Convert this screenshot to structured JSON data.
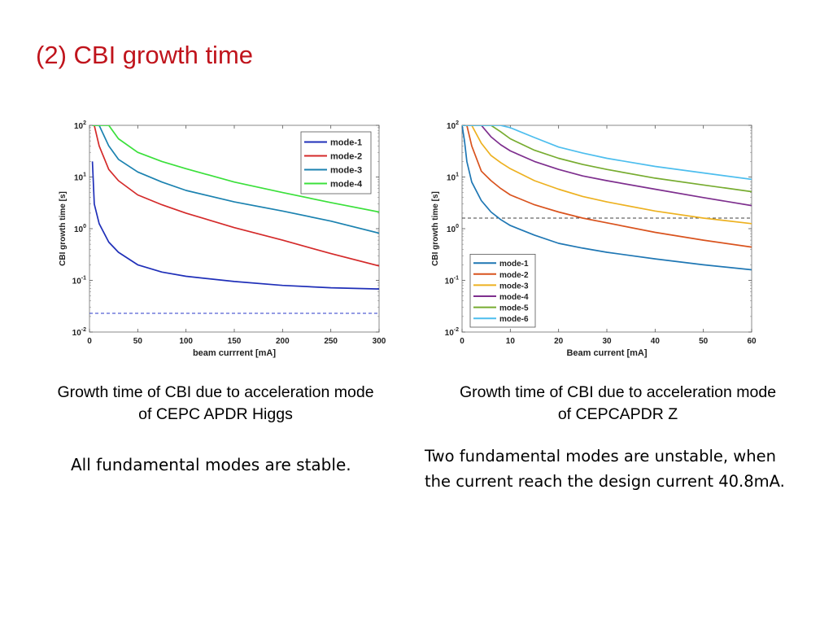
{
  "slide": {
    "title": "(2) CBI growth time",
    "caption_left_line1": "Growth time of CBI due to acceleration mode",
    "caption_left_line2": "of CEPC APDR Higgs",
    "caption_right_line1": "Growth time of CBI due to acceleration mode",
    "caption_right_line2": "of CEPCAPDR Z",
    "note_left": "All fundamental modes are stable.",
    "note_right_line1": "Two fundamental modes are unstable, when",
    "note_right_line2": "the current reach the design current 40.8mA."
  },
  "chart_data": [
    {
      "type": "line",
      "xlabel": "beam currrent [mA]",
      "ylabel": "CBI growth time [s]",
      "xlim": [
        0,
        300
      ],
      "ylim": [
        0.01,
        100
      ],
      "y_scale": "log",
      "x_ticks": [
        0,
        50,
        100,
        150,
        200,
        250,
        300
      ],
      "y_tick_labels": [
        "10^-2",
        "10^-1",
        "10^0",
        "10^1",
        "10^2"
      ],
      "grid": false,
      "legend_position": "top-right",
      "x": [
        3,
        5,
        10,
        20,
        30,
        50,
        75,
        100,
        150,
        200,
        250,
        300
      ],
      "series": [
        {
          "name": "mode-1",
          "color": "#1f2fb8",
          "values": [
            20,
            3.0,
            1.25,
            0.55,
            0.35,
            0.2,
            0.145,
            0.12,
            0.095,
            0.08,
            0.072,
            0.068
          ]
        },
        {
          "name": "mode-2",
          "color": "#d42a2a",
          "values": [
            100,
            100,
            40,
            14,
            8.5,
            4.5,
            2.9,
            2.0,
            1.05,
            0.6,
            0.33,
            0.19
          ]
        },
        {
          "name": "mode-3",
          "color": "#1b82b0",
          "values": [
            100,
            100,
            100,
            40,
            22,
            12.5,
            8.0,
            5.5,
            3.3,
            2.2,
            1.4,
            0.82
          ]
        },
        {
          "name": "mode-4",
          "color": "#3be03b",
          "values": [
            100,
            100,
            100,
            100,
            55,
            30,
            20,
            14.5,
            8.0,
            5.0,
            3.2,
            2.1
          ]
        }
      ],
      "reference_line": {
        "y": 0.023,
        "color": "#2a3ac8",
        "style": "dashed"
      }
    },
    {
      "type": "line",
      "xlabel": "Beam current [mA]",
      "ylabel": "CBI growth time [s]",
      "xlim": [
        0,
        60
      ],
      "ylim": [
        0.01,
        100
      ],
      "y_scale": "log",
      "x_ticks": [
        0,
        10,
        20,
        30,
        40,
        50,
        60
      ],
      "y_tick_labels": [
        "10^-2",
        "10^-1",
        "10^0",
        "10^1",
        "10^2"
      ],
      "grid": false,
      "legend_position": "bottom-left",
      "x": [
        0,
        0.5,
        1,
        2,
        4,
        6,
        8,
        10,
        15,
        20,
        25,
        30,
        40,
        50,
        60
      ],
      "series": [
        {
          "name": "mode-1",
          "color": "#1f77b4",
          "values": [
            100,
            50,
            20,
            8,
            3.5,
            2.1,
            1.5,
            1.15,
            0.75,
            0.52,
            0.42,
            0.35,
            0.26,
            0.2,
            0.16
          ]
        },
        {
          "name": "mode-2",
          "color": "#d9531e",
          "values": [
            100,
            100,
            100,
            40,
            13,
            8.5,
            6.0,
            4.5,
            2.9,
            2.1,
            1.6,
            1.3,
            0.85,
            0.6,
            0.44
          ]
        },
        {
          "name": "mode-3",
          "color": "#edb120",
          "values": [
            100,
            100,
            100,
            100,
            45,
            26,
            19,
            14.5,
            8.5,
            5.8,
            4.2,
            3.3,
            2.2,
            1.6,
            1.25
          ]
        },
        {
          "name": "mode-4",
          "color": "#7e2f8e",
          "values": [
            100,
            100,
            100,
            100,
            100,
            60,
            42,
            32,
            20,
            14,
            10.5,
            8.5,
            5.8,
            4.0,
            2.8
          ]
        },
        {
          "name": "mode-5",
          "color": "#77ac30",
          "values": [
            100,
            100,
            100,
            100,
            100,
            100,
            75,
            55,
            33,
            23,
            17.5,
            14,
            9.5,
            7.0,
            5.2
          ]
        },
        {
          "name": "mode-6",
          "color": "#4dbeee",
          "values": [
            100,
            100,
            100,
            100,
            100,
            100,
            100,
            90,
            58,
            38,
            29,
            23,
            16,
            12,
            9.0
          ]
        }
      ],
      "reference_line": {
        "y": 1.6,
        "color": "#404040",
        "style": "dashed"
      }
    }
  ]
}
